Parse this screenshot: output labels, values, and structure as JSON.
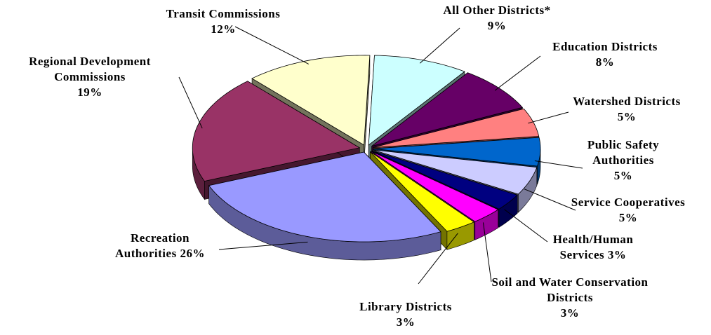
{
  "chart_data": {
    "type": "pie",
    "categories": [
      "All Other Districts*",
      "Education Districts",
      "Watershed Districts",
      "Public Safety Authorities",
      "Service Cooperatives",
      "Health/Human Services",
      "Soil and Water Conservation Districts",
      "Library Districts",
      "Recreation Authorities",
      "Regional Development Commissions",
      "Transit Commissions"
    ],
    "values": [
      9,
      8,
      5,
      5,
      5,
      3,
      3,
      3,
      26,
      19,
      12
    ],
    "value_labels": [
      "9%",
      "8%",
      "5%",
      "5%",
      "5%",
      "3%",
      "3%",
      "3%",
      "26%",
      "19%",
      "12%"
    ],
    "colors": [
      "#ccffff",
      "#660066",
      "#ff8080",
      "#0066cc",
      "#ccccff",
      "#000080",
      "#ff00ff",
      "#ffff00",
      "#9999ff",
      "#993366",
      "#ffffcc"
    ]
  }
}
